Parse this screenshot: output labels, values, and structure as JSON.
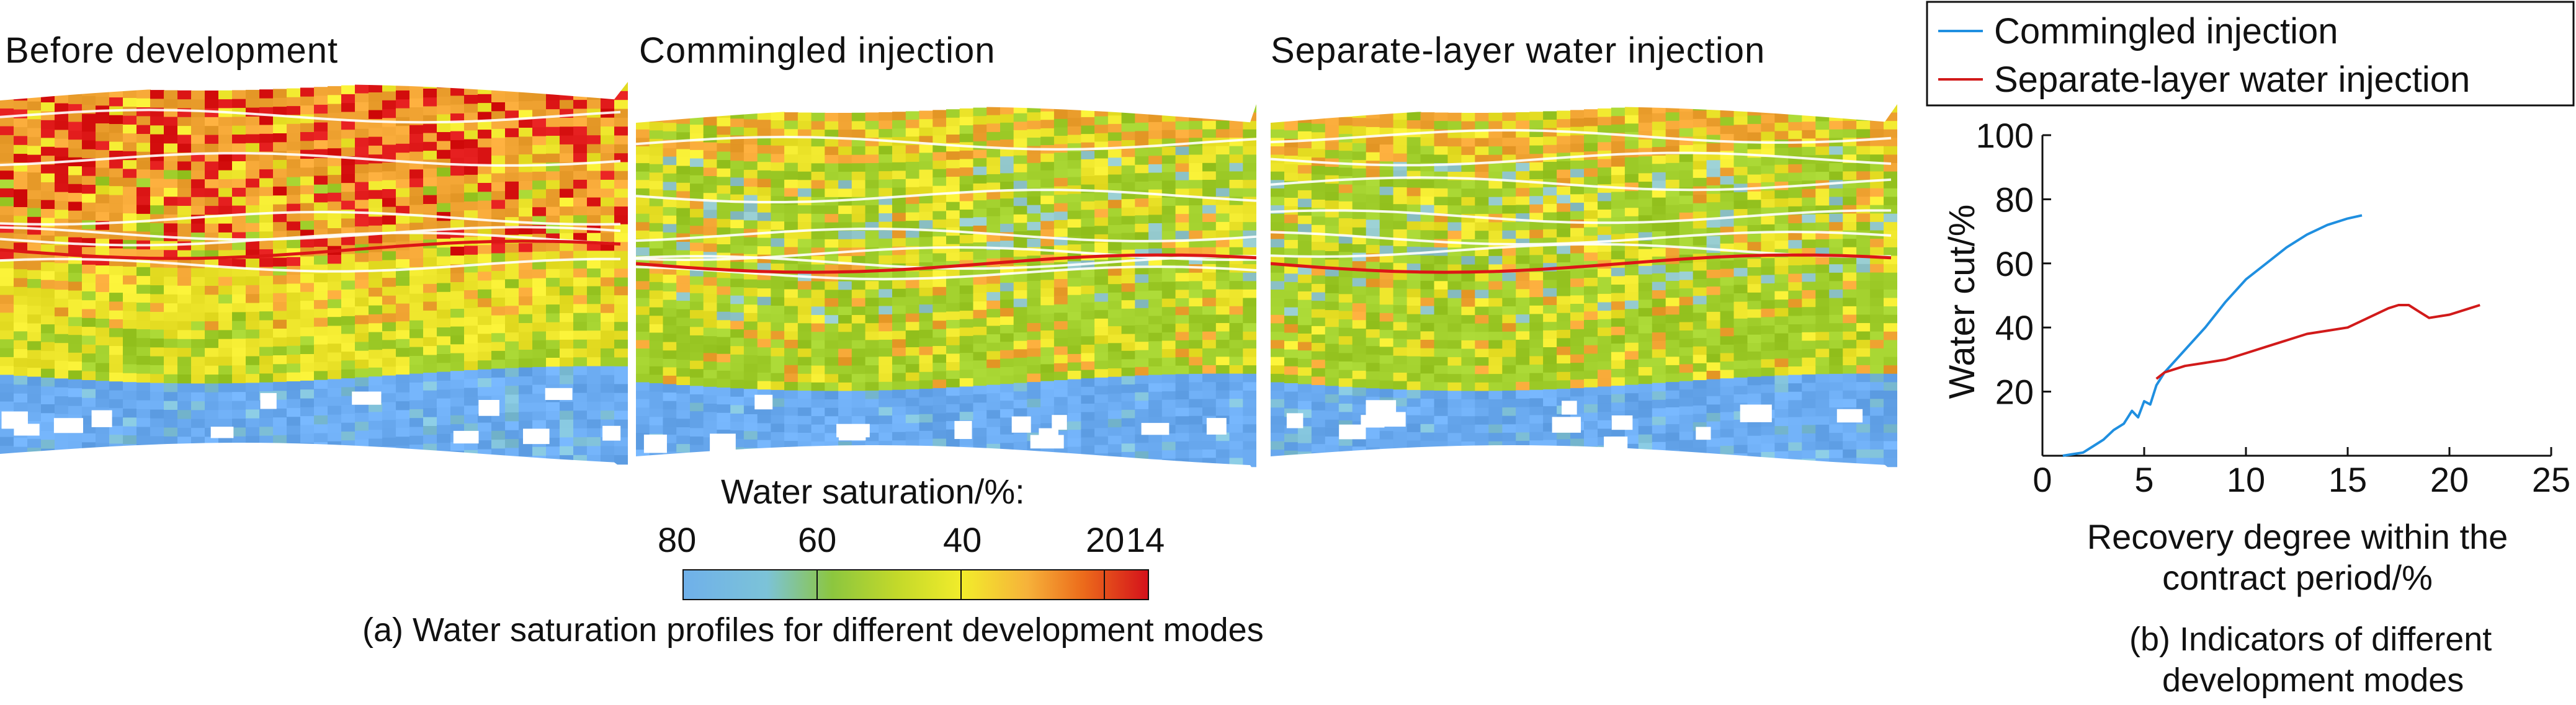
{
  "panel_a": {
    "titles": [
      "Before development",
      "Commingled injection",
      "Separate-layer water injection"
    ],
    "colorbar_title": "Water saturation/%:",
    "colorbar_ticks": [
      "80",
      "60",
      "40",
      "20",
      "14"
    ],
    "colorbar_colors": [
      "#6fb0ea",
      "#7cc3d8",
      "#8cc63f",
      "#c3d92a",
      "#f2ec2b",
      "#f6b23a",
      "#ec6b1b",
      "#d4111b"
    ],
    "palette": {
      "water": "#6aaaf0",
      "green": "#9fcd2a",
      "yellow": "#eee62c",
      "orange": "#f0a332",
      "red": "#dc1616"
    },
    "caption": "(a) Water saturation profiles for different development modes"
  },
  "panel_b": {
    "caption_lines": [
      "(b) Indicators of different",
      "development modes"
    ]
  },
  "chart_data": {
    "type": "line",
    "xlabel_lines": [
      "Recovery degree within the",
      "contract period/%"
    ],
    "ylabel": "Water cut/%",
    "xlim": [
      0,
      25
    ],
    "ylim": [
      0,
      100
    ],
    "x_ticks": [
      0,
      5,
      10,
      15,
      20,
      25
    ],
    "y_ticks": [
      20,
      40,
      60,
      80,
      100
    ],
    "legend_position": "top",
    "series": [
      {
        "name": "Commingled injection",
        "color": "#1f8fe0",
        "x": [
          1.0,
          1.5,
          2.0,
          2.5,
          3.0,
          3.5,
          4.0,
          4.4,
          4.7,
          5.0,
          5.3,
          5.6,
          6.0,
          7.0,
          8.0,
          9.0,
          10.0,
          11.0,
          12.0,
          13.0,
          14.0,
          15.0,
          15.7
        ],
        "y": [
          0,
          0.5,
          1,
          3,
          5,
          8,
          10,
          14,
          12,
          17,
          16,
          22,
          26,
          33,
          40,
          48,
          55,
          60,
          65,
          69,
          72,
          74,
          75
        ]
      },
      {
        "name": "Separate-layer water injection",
        "color": "#d11a1a",
        "x": [
          5.6,
          6.0,
          7.0,
          8.0,
          9.0,
          10.0,
          11.0,
          12.0,
          13.0,
          14.0,
          15.0,
          16.0,
          17.0,
          17.5,
          18.0,
          18.5,
          19.0,
          20.0,
          21.0,
          21.5
        ],
        "y": [
          24,
          26,
          28,
          29,
          30,
          32,
          34,
          36,
          38,
          39,
          40,
          43,
          46,
          47,
          47,
          45,
          43,
          44,
          46,
          47
        ]
      }
    ]
  }
}
